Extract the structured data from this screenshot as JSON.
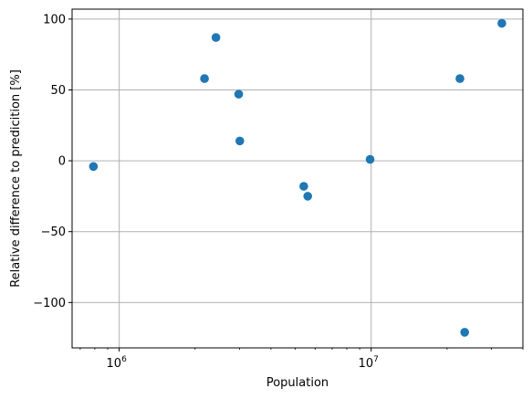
{
  "chart_data": {
    "type": "scatter",
    "xlabel": "Population",
    "ylabel": "Relative difference to predicition [%]",
    "xscale": "log",
    "xlim": [
      650000,
      40000000
    ],
    "ylim": [
      -132,
      107
    ],
    "grid": true,
    "marker_color": "#1f77b4",
    "x_ticks": [
      {
        "value": 1000000,
        "base": "10",
        "exp": "6"
      },
      {
        "value": 10000000,
        "base": "10",
        "exp": "7"
      }
    ],
    "y_ticks": [
      {
        "value": 100,
        "label": "100"
      },
      {
        "value": 50,
        "label": "50"
      },
      {
        "value": 0,
        "label": "0"
      },
      {
        "value": -50,
        "label": "−50"
      },
      {
        "value": -100,
        "label": "−100"
      }
    ],
    "points": [
      {
        "x": 790000,
        "y": -4
      },
      {
        "x": 2180000,
        "y": 58
      },
      {
        "x": 2420000,
        "y": 87
      },
      {
        "x": 2980000,
        "y": 47
      },
      {
        "x": 3010000,
        "y": 14
      },
      {
        "x": 5400000,
        "y": -18
      },
      {
        "x": 5600000,
        "y": -25
      },
      {
        "x": 9900000,
        "y": 1
      },
      {
        "x": 22500000,
        "y": 58
      },
      {
        "x": 23500000,
        "y": -121
      },
      {
        "x": 33000000,
        "y": 97
      }
    ]
  }
}
